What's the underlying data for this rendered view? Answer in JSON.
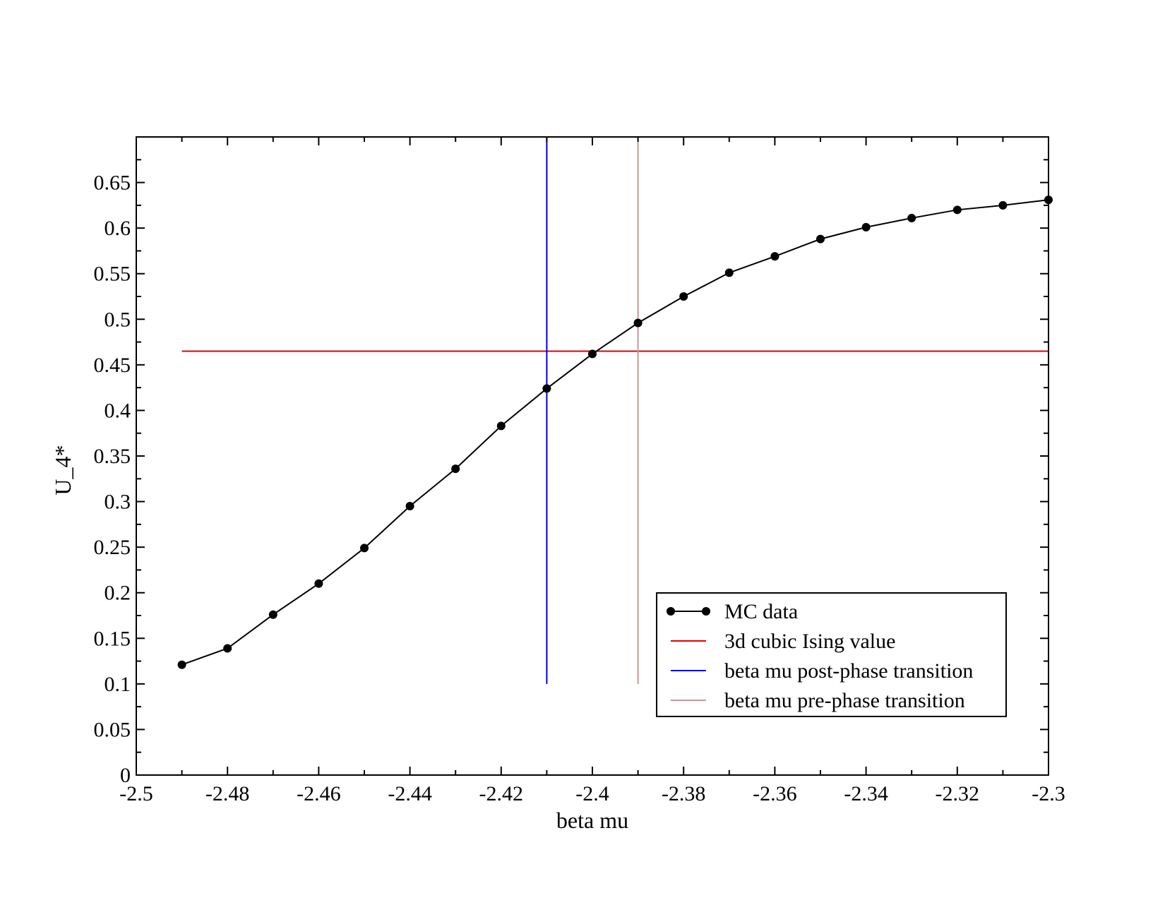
{
  "chart_data": {
    "type": "line",
    "title": "",
    "xlabel": "beta mu",
    "ylabel": "U_4*",
    "xlim": [
      -2.5,
      -2.3
    ],
    "ylim": [
      0,
      0.7
    ],
    "x_ticks": [
      -2.5,
      -2.48,
      -2.46,
      -2.44,
      -2.42,
      -2.4,
      -2.38,
      -2.36,
      -2.34,
      -2.32,
      -2.3
    ],
    "x_tick_labels": [
      "-2.5",
      "-2.48",
      "-2.46",
      "-2.44",
      "-2.42",
      "-2.4",
      "-2.38",
      "-2.36",
      "-2.34",
      "-2.32",
      "-2.3"
    ],
    "y_ticks": [
      0,
      0.05,
      0.1,
      0.15,
      0.2,
      0.25,
      0.3,
      0.35,
      0.4,
      0.45,
      0.5,
      0.55,
      0.6,
      0.65
    ],
    "y_tick_labels": [
      "0",
      "0.05",
      "0.1",
      "0.15",
      "0.2",
      "0.25",
      "0.3",
      "0.35",
      "0.4",
      "0.45",
      "0.5",
      "0.55",
      "0.6",
      "0.65"
    ],
    "grid": false,
    "legend_position": "bottom-right",
    "series": [
      {
        "name": "MC data",
        "type": "line-markers",
        "color": "#000000",
        "x": [
          -2.49,
          -2.48,
          -2.47,
          -2.46,
          -2.45,
          -2.44,
          -2.43,
          -2.42,
          -2.41,
          -2.4,
          -2.39,
          -2.38,
          -2.37,
          -2.36,
          -2.35,
          -2.34,
          -2.33,
          -2.32,
          -2.31,
          -2.3
        ],
        "y": [
          0.121,
          0.139,
          0.176,
          0.21,
          0.249,
          0.295,
          0.336,
          0.383,
          0.424,
          0.462,
          0.496,
          0.525,
          0.551,
          0.569,
          0.588,
          0.601,
          0.611,
          0.62,
          0.625,
          0.631
        ]
      },
      {
        "name": "3d cubic Ising value",
        "type": "hline",
        "color": "#dd0000",
        "y": 0.465,
        "x_range": [
          -2.49,
          -2.3
        ]
      },
      {
        "name": "beta mu post-phase transition",
        "type": "vline",
        "color": "#0000cc",
        "x": -2.41,
        "y_range": [
          0.1,
          0.7
        ]
      },
      {
        "name": "beta mu pre-phase transition",
        "type": "vline",
        "color": "#c09a9a",
        "x": -2.39,
        "y_range": [
          0.1,
          0.7
        ]
      }
    ]
  }
}
